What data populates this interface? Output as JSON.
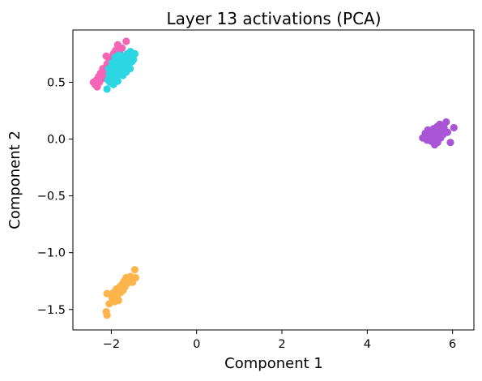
{
  "chart_data": {
    "type": "scatter",
    "title": "Layer 13 activations (PCA)",
    "xlabel": "Component 1",
    "ylabel": "Component 2",
    "xlim": [
      -2.9,
      6.5
    ],
    "ylim": [
      -1.68,
      0.96
    ],
    "xticks": [
      -2,
      0,
      2,
      4,
      6
    ],
    "yticks": [
      0.5,
      0.0,
      -0.5,
      -1.0,
      -1.5
    ],
    "xtick_labels": [
      "−2",
      "0",
      "2",
      "4",
      "6"
    ],
    "ytick_labels": [
      "0.5",
      "0.0",
      "−0.5",
      "−1.0",
      "−1.5"
    ],
    "grid": false,
    "legend": false,
    "series": [
      {
        "color": "#f564b5",
        "points": [
          [
            -2.42,
            0.5
          ],
          [
            -2.38,
            0.48
          ],
          [
            -2.35,
            0.52
          ],
          [
            -2.33,
            0.46
          ],
          [
            -2.3,
            0.55
          ],
          [
            -2.28,
            0.5
          ],
          [
            -2.25,
            0.58
          ],
          [
            -2.22,
            0.53
          ],
          [
            -2.2,
            0.62
          ],
          [
            -2.18,
            0.56
          ],
          [
            -2.15,
            0.6
          ],
          [
            -2.12,
            0.73
          ],
          [
            -2.1,
            0.66
          ],
          [
            -2.08,
            0.61
          ],
          [
            -2.05,
            0.69
          ],
          [
            -2.02,
            0.64
          ],
          [
            -2.0,
            0.72
          ],
          [
            -1.98,
            0.68
          ],
          [
            -1.95,
            0.75
          ],
          [
            -1.92,
            0.7
          ],
          [
            -1.9,
            0.78
          ],
          [
            -1.88,
            0.74
          ],
          [
            -1.85,
            0.83
          ],
          [
            -1.82,
            0.79
          ],
          [
            -1.8,
            0.76
          ],
          [
            -1.75,
            0.8
          ],
          [
            -1.7,
            0.72
          ],
          [
            -1.65,
            0.86
          ]
        ]
      },
      {
        "color": "#2dd6e3",
        "points": [
          [
            -2.1,
            0.44
          ],
          [
            -2.08,
            0.52
          ],
          [
            -2.05,
            0.57
          ],
          [
            -2.03,
            0.5
          ],
          [
            -2.0,
            0.6
          ],
          [
            -1.98,
            0.55
          ],
          [
            -1.96,
            0.63
          ],
          [
            -1.95,
            0.52
          ],
          [
            -1.93,
            0.58
          ],
          [
            -1.9,
            0.66
          ],
          [
            -1.88,
            0.54
          ],
          [
            -1.86,
            0.61
          ],
          [
            -1.85,
            0.69
          ],
          [
            -1.83,
            0.57
          ],
          [
            -1.8,
            0.64
          ],
          [
            -1.78,
            0.71
          ],
          [
            -1.76,
            0.6
          ],
          [
            -1.75,
            0.67
          ],
          [
            -1.73,
            0.56
          ],
          [
            -1.7,
            0.73
          ],
          [
            -1.68,
            0.63
          ],
          [
            -1.66,
            0.69
          ],
          [
            -1.65,
            0.59
          ],
          [
            -1.63,
            0.75
          ],
          [
            -1.6,
            0.66
          ],
          [
            -1.58,
            0.71
          ],
          [
            -1.56,
            0.62
          ],
          [
            -1.55,
            0.77
          ],
          [
            -1.52,
            0.68
          ],
          [
            -1.5,
            0.73
          ],
          [
            -1.48,
            0.7
          ],
          [
            -1.45,
            0.75
          ],
          [
            -2.06,
            0.62
          ],
          [
            -1.98,
            0.67
          ],
          [
            -1.91,
            0.72
          ],
          [
            -1.82,
            0.74
          ],
          [
            -1.72,
            0.65
          ],
          [
            -1.62,
            0.7
          ],
          [
            -1.95,
            0.48
          ],
          [
            -1.85,
            0.51
          ]
        ]
      },
      {
        "color": "#a856d6",
        "points": [
          [
            5.3,
            0.01
          ],
          [
            5.36,
            0.05
          ],
          [
            5.4,
            -0.01
          ],
          [
            5.42,
            0.08
          ],
          [
            5.45,
            0.03
          ],
          [
            5.48,
            0.06
          ],
          [
            5.5,
            -0.02
          ],
          [
            5.52,
            0.04
          ],
          [
            5.55,
            0.09
          ],
          [
            5.56,
            0.0
          ],
          [
            5.58,
            -0.05
          ],
          [
            5.6,
            0.07
          ],
          [
            5.62,
            0.02
          ],
          [
            5.64,
            0.11
          ],
          [
            5.65,
            -0.03
          ],
          [
            5.68,
            0.05
          ],
          [
            5.7,
            0.13
          ],
          [
            5.72,
            0.01
          ],
          [
            5.75,
            0.08
          ],
          [
            5.78,
            0.04
          ],
          [
            5.8,
            0.1
          ],
          [
            5.85,
            0.15
          ],
          [
            5.88,
            0.06
          ],
          [
            5.95,
            -0.03
          ],
          [
            6.03,
            0.1
          ]
        ]
      },
      {
        "color": "#fdb44b",
        "points": [
          [
            -2.12,
            -1.52
          ],
          [
            -2.1,
            -1.55
          ],
          [
            -2.1,
            -1.36
          ],
          [
            -2.05,
            -1.45
          ],
          [
            -1.98,
            -1.4
          ],
          [
            -1.95,
            -1.35
          ],
          [
            -1.92,
            -1.43
          ],
          [
            -1.9,
            -1.38
          ],
          [
            -1.88,
            -1.32
          ],
          [
            -1.85,
            -1.37
          ],
          [
            -1.83,
            -1.42
          ],
          [
            -1.8,
            -1.3
          ],
          [
            -1.78,
            -1.35
          ],
          [
            -1.75,
            -1.28
          ],
          [
            -1.72,
            -1.33
          ],
          [
            -1.7,
            -1.25
          ],
          [
            -1.68,
            -1.3
          ],
          [
            -1.65,
            -1.22
          ],
          [
            -1.62,
            -1.27
          ],
          [
            -1.6,
            -1.24
          ],
          [
            -1.55,
            -1.21
          ],
          [
            -1.5,
            -1.26
          ],
          [
            -1.45,
            -1.15
          ],
          [
            -1.43,
            -1.22
          ]
        ]
      }
    ]
  }
}
